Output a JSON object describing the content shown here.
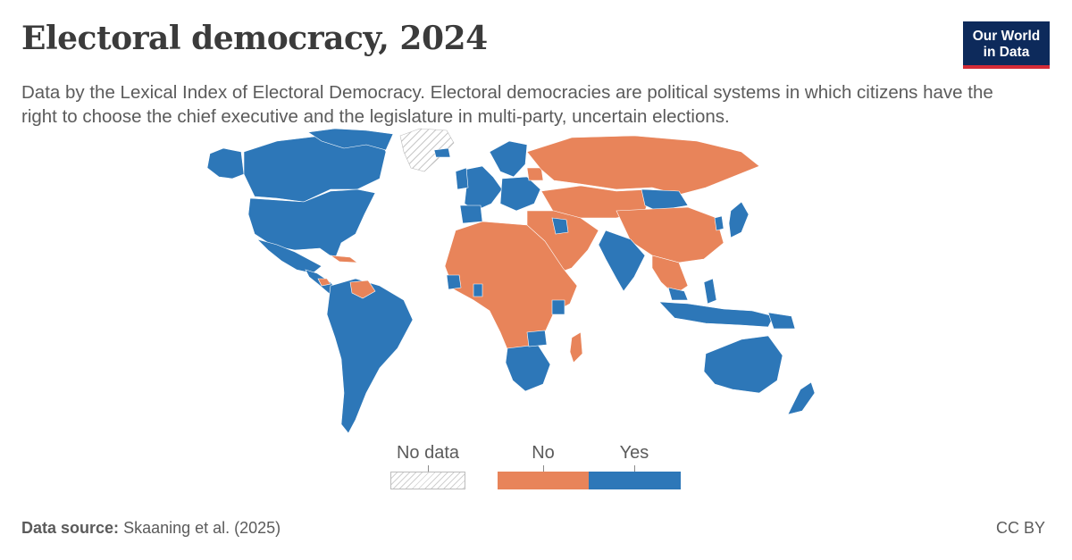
{
  "title": "Electoral democracy, 2024",
  "subtitle": "Data by the Lexical Index of Electoral Democracy. Electoral democracies are political systems in which citizens have the right to choose the chief executive and the legislature in multi-party, uncertain elections.",
  "logo": {
    "line1": "Our World",
    "line2": "in Data"
  },
  "legend": {
    "no_data_label": "No data",
    "items": [
      {
        "label": "No",
        "color": "#e8845a"
      },
      {
        "label": "Yes",
        "color": "#2d77b8"
      }
    ]
  },
  "colors": {
    "no": "#e8845a",
    "yes": "#2d77b8",
    "no_data": "#d9d9d9"
  },
  "footer": {
    "source_label": "Data source:",
    "source_value": "Skaaning et al. (2025)",
    "license": "CC BY"
  }
}
